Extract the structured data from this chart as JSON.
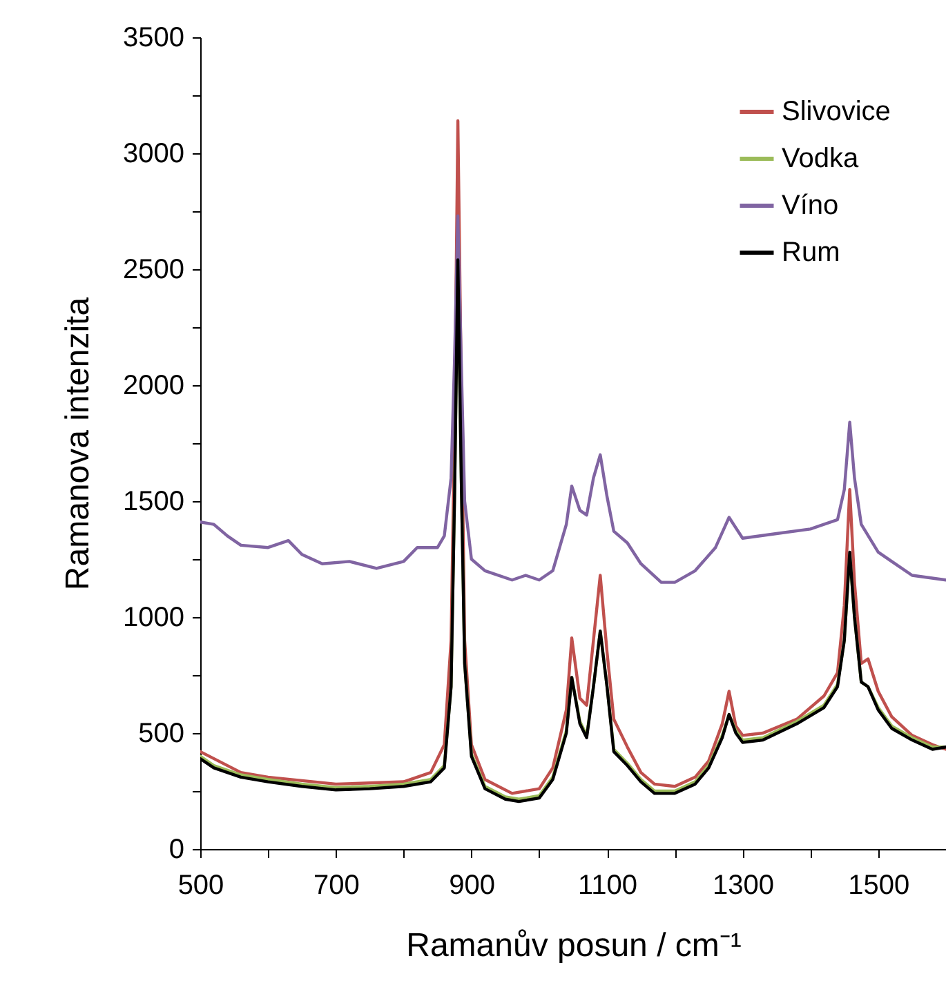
{
  "chart_data": {
    "type": "line",
    "xlabel": "Ramanův posun / cm⁻¹",
    "ylabel": "Ramanova intenzita",
    "xlim": [
      500,
      1600
    ],
    "xticks": [
      500,
      {
        "value": 600,
        "label": null
      },
      700,
      {
        "value": 800,
        "label": null
      },
      900,
      {
        "value": 1000,
        "label": null
      },
      1100,
      {
        "value": 1200,
        "label": null
      },
      1300,
      {
        "value": 1400,
        "label": null
      },
      1500
    ],
    "ylim": [
      0,
      3500
    ],
    "yticks": [
      0,
      {
        "value": 250,
        "label": null
      },
      500,
      {
        "value": 750,
        "label": null
      },
      1000,
      {
        "value": 1250,
        "label": null
      },
      1500,
      {
        "value": 1750,
        "label": null
      },
      2000,
      {
        "value": 2250,
        "label": null
      },
      2500,
      {
        "value": 2750,
        "label": null
      },
      3000,
      {
        "value": 3250,
        "label": null
      },
      3500
    ],
    "grid": false,
    "legend": "top right",
    "line_style": "solid",
    "series": [
      {
        "name": "Slivovice",
        "color": "#c0504d",
        "x": [
          500,
          560,
          600,
          700,
          800,
          840,
          860,
          870,
          875,
          880,
          885,
          890,
          900,
          920,
          960,
          1000,
          1020,
          1040,
          1048,
          1060,
          1070,
          1080,
          1090,
          1100,
          1110,
          1130,
          1150,
          1170,
          1200,
          1230,
          1250,
          1270,
          1280,
          1290,
          1300,
          1330,
          1380,
          1420,
          1440,
          1450,
          1458,
          1465,
          1475,
          1485,
          1500,
          1520,
          1550,
          1580,
          1600
        ],
        "values": [
          420,
          330,
          310,
          280,
          290,
          330,
          450,
          900,
          1800,
          3140,
          2000,
          900,
          450,
          300,
          240,
          260,
          350,
          600,
          910,
          650,
          620,
          900,
          1180,
          850,
          560,
          440,
          330,
          280,
          270,
          310,
          380,
          540,
          680,
          530,
          490,
          500,
          560,
          660,
          760,
          1050,
          1550,
          1150,
          800,
          820,
          680,
          570,
          490,
          450,
          430
        ]
      },
      {
        "name": "Vodka",
        "color": "#9bbb59",
        "x": [
          500,
          520,
          560,
          600,
          650,
          700,
          750,
          800,
          840,
          860,
          870,
          875,
          880,
          885,
          890,
          900,
          920,
          950,
          970,
          1000,
          1020,
          1040,
          1048,
          1060,
          1070,
          1080,
          1090,
          1100,
          1110,
          1130,
          1150,
          1170,
          1200,
          1230,
          1250,
          1270,
          1280,
          1290,
          1300,
          1330,
          1380,
          1420,
          1440,
          1450,
          1458,
          1465,
          1475,
          1485,
          1500,
          1520,
          1550,
          1580,
          1600
        ],
        "values": [
          400,
          360,
          320,
          300,
          280,
          265,
          270,
          280,
          300,
          360,
          700,
          1500,
          2520,
          1600,
          800,
          410,
          270,
          225,
          215,
          230,
          310,
          510,
          740,
          550,
          490,
          700,
          940,
          700,
          430,
          370,
          300,
          250,
          250,
          290,
          360,
          490,
          580,
          510,
          470,
          480,
          550,
          620,
          710,
          900,
          1270,
          1000,
          720,
          700,
          610,
          530,
          480,
          440,
          440
        ]
      },
      {
        "name": "Víno",
        "color": "#8064a2",
        "x": [
          500,
          520,
          540,
          560,
          600,
          630,
          650,
          680,
          720,
          760,
          800,
          820,
          850,
          860,
          870,
          875,
          880,
          885,
          890,
          900,
          920,
          960,
          980,
          1000,
          1020,
          1040,
          1048,
          1060,
          1070,
          1080,
          1090,
          1100,
          1110,
          1130,
          1150,
          1180,
          1200,
          1230,
          1260,
          1280,
          1300,
          1350,
          1400,
          1440,
          1450,
          1458,
          1465,
          1475,
          1500,
          1520,
          1550,
          1600
        ],
        "values": [
          1410,
          1400,
          1350,
          1310,
          1300,
          1330,
          1270,
          1230,
          1240,
          1210,
          1240,
          1300,
          1300,
          1350,
          1600,
          2100,
          2730,
          2100,
          1500,
          1250,
          1200,
          1160,
          1180,
          1160,
          1200,
          1400,
          1565,
          1460,
          1440,
          1600,
          1700,
          1520,
          1370,
          1320,
          1230,
          1150,
          1150,
          1200,
          1300,
          1430,
          1340,
          1360,
          1380,
          1420,
          1550,
          1840,
          1600,
          1400,
          1280,
          1240,
          1180,
          1160
        ]
      },
      {
        "name": "Rum",
        "color": "#000000",
        "x": [
          500,
          520,
          560,
          600,
          650,
          700,
          750,
          800,
          840,
          860,
          870,
          875,
          880,
          885,
          890,
          900,
          920,
          950,
          970,
          1000,
          1020,
          1040,
          1048,
          1060,
          1070,
          1080,
          1090,
          1100,
          1110,
          1130,
          1150,
          1170,
          1200,
          1230,
          1250,
          1270,
          1280,
          1290,
          1300,
          1330,
          1380,
          1420,
          1440,
          1450,
          1458,
          1465,
          1475,
          1485,
          1500,
          1520,
          1550,
          1580,
          1600
        ],
        "values": [
          390,
          350,
          310,
          290,
          270,
          255,
          260,
          270,
          290,
          350,
          700,
          1500,
          2540,
          1600,
          800,
          400,
          260,
          215,
          205,
          220,
          300,
          500,
          740,
          540,
          480,
          700,
          940,
          700,
          420,
          360,
          290,
          240,
          240,
          280,
          350,
          480,
          580,
          500,
          460,
          470,
          540,
          610,
          700,
          900,
          1280,
          1000,
          720,
          700,
          600,
          520,
          470,
          430,
          440
        ]
      }
    ]
  }
}
